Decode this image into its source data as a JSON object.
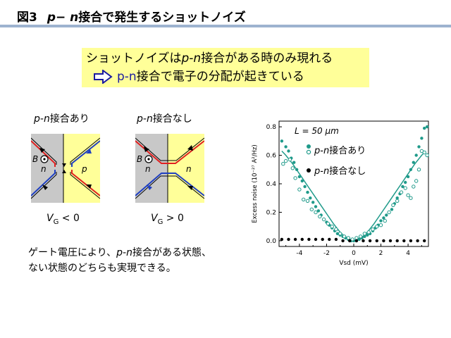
{
  "title": {
    "fig": "図3",
    "pn": "p− n",
    "rest": "接合で発生するショットノイズ"
  },
  "callout": {
    "line1_a": "ショットノイズは",
    "line1_pn": "p-n",
    "line1_b": "接合がある時のみ現れる",
    "line2_pn": "p-n",
    "line2_b": "接合で電子の分配が起きている"
  },
  "diagrams": {
    "left": {
      "label_pn": "p-n",
      "label_rest": "接合あり",
      "B": "B",
      "n": "n",
      "p": "p",
      "vg_sym": "V",
      "vg_sub": "G",
      "vg_cond": " < 0"
    },
    "right": {
      "label_pn": "p-n",
      "label_rest": "接合なし",
      "B": "B",
      "n1": "n",
      "n2": "n",
      "vg_sym": "V",
      "vg_sub": "G",
      "vg_cond": " > 0"
    }
  },
  "description": {
    "a": "ゲート電圧により、",
    "pn": "p-n",
    "b": "接合がある状態、",
    "line2": "ない状態のどちらも実現できる。"
  },
  "colors": {
    "teal": "#1f9a8a",
    "yellow": "#ffff99",
    "rule": "#9db3cf",
    "red": "#e02020",
    "blue": "#2040c0"
  },
  "chart_data": {
    "type": "scatter",
    "annotation": "L = 50 μm",
    "ylabel": "Excess noise (10⁻²⁷ A²/Hz)",
    "xlabel": "Vsd (mV)",
    "xlim": [
      -5.5,
      5.5
    ],
    "ylim": [
      -0.04,
      0.84
    ],
    "xticks": [
      "-4",
      "-2",
      "0",
      "2",
      "4"
    ],
    "yticks": [
      "0.0",
      "0.2",
      "0.4",
      "0.6",
      "0.8"
    ],
    "legend": {
      "series1_pn": "p-n",
      "series1_rest": "接合あり",
      "series2_pn": "p-n",
      "series2_rest": "接合なし"
    },
    "series": [
      {
        "name": "p-n接合あり (filled)",
        "marker": "filled",
        "color": "#1f9a8a",
        "points": [
          [
            -5.3,
            0.7
          ],
          [
            -5.0,
            0.66
          ],
          [
            -4.8,
            0.63
          ],
          [
            -4.6,
            0.58
          ],
          [
            -4.4,
            0.55
          ],
          [
            -4.2,
            0.5
          ],
          [
            -4.0,
            0.45
          ],
          [
            -3.8,
            0.42
          ],
          [
            -3.6,
            0.38
          ],
          [
            -3.4,
            0.34
          ],
          [
            -3.2,
            0.3
          ],
          [
            -3.0,
            0.27
          ],
          [
            -2.8,
            0.24
          ],
          [
            -2.6,
            0.21
          ],
          [
            -2.4,
            0.18
          ],
          [
            -2.2,
            0.15
          ],
          [
            -2.0,
            0.13
          ],
          [
            -1.8,
            0.11
          ],
          [
            -1.6,
            0.09
          ],
          [
            -1.4,
            0.07
          ],
          [
            -1.2,
            0.05
          ],
          [
            -1.0,
            0.04
          ],
          [
            -0.8,
            0.03
          ],
          [
            -0.6,
            0.02
          ],
          [
            -0.4,
            0.01
          ],
          [
            -0.2,
            0.0
          ],
          [
            0.0,
            0.0
          ],
          [
            0.2,
            0.0
          ],
          [
            0.4,
            0.01
          ],
          [
            0.6,
            0.02
          ],
          [
            0.8,
            0.03
          ],
          [
            1.0,
            0.04
          ],
          [
            1.2,
            0.05
          ],
          [
            1.4,
            0.07
          ],
          [
            1.6,
            0.09
          ],
          [
            1.8,
            0.11
          ],
          [
            2.0,
            0.14
          ],
          [
            2.2,
            0.16
          ],
          [
            2.4,
            0.18
          ],
          [
            2.6,
            0.2
          ],
          [
            2.8,
            0.22
          ],
          [
            3.0,
            0.26
          ],
          [
            3.2,
            0.3
          ],
          [
            3.4,
            0.33
          ],
          [
            3.6,
            0.38
          ],
          [
            3.8,
            0.41
          ],
          [
            4.0,
            0.45
          ],
          [
            4.2,
            0.5
          ],
          [
            4.4,
            0.55
          ],
          [
            4.6,
            0.6
          ],
          [
            4.8,
            0.66
          ],
          [
            5.0,
            0.72
          ],
          [
            5.2,
            0.79
          ],
          [
            5.4,
            0.8
          ]
        ]
      },
      {
        "name": "p-n接合あり (open)",
        "marker": "open",
        "color": "#1f9a8a",
        "points": [
          [
            -5.2,
            0.54
          ],
          [
            -5.0,
            0.56
          ],
          [
            -4.7,
            0.57
          ],
          [
            -4.5,
            0.51
          ],
          [
            -4.3,
            0.44
          ],
          [
            -4.0,
            0.36
          ],
          [
            -3.7,
            0.29
          ],
          [
            -3.4,
            0.28
          ],
          [
            -3.1,
            0.22
          ],
          [
            -2.8,
            0.2
          ],
          [
            -2.5,
            0.17
          ],
          [
            -2.2,
            0.15
          ],
          [
            -1.9,
            0.12
          ],
          [
            -1.6,
            0.1
          ],
          [
            -1.3,
            0.08
          ],
          [
            -1.0,
            0.05
          ],
          [
            -0.7,
            0.03
          ],
          [
            -0.4,
            0.02
          ],
          [
            -0.1,
            0.01
          ],
          [
            0.2,
            0.02
          ],
          [
            0.5,
            0.03
          ],
          [
            0.8,
            0.05
          ],
          [
            1.1,
            0.06
          ],
          [
            1.4,
            0.08
          ],
          [
            1.7,
            0.1
          ],
          [
            2.0,
            0.11
          ],
          [
            2.3,
            0.14
          ],
          [
            2.6,
            0.2
          ],
          [
            2.9,
            0.25
          ],
          [
            3.2,
            0.28
          ],
          [
            3.5,
            0.34
          ],
          [
            3.8,
            0.37
          ],
          [
            4.0,
            0.32
          ],
          [
            4.2,
            0.3
          ],
          [
            4.4,
            0.38
          ],
          [
            4.6,
            0.42
          ],
          [
            4.8,
            0.5
          ],
          [
            5.0,
            0.63
          ],
          [
            5.2,
            0.62
          ],
          [
            5.4,
            0.6
          ]
        ]
      },
      {
        "name": "p-n接合なし",
        "marker": "filled",
        "color": "#000000",
        "points": [
          [
            -5.3,
            0.01
          ],
          [
            -4.8,
            0.01
          ],
          [
            -4.3,
            0.01
          ],
          [
            -3.8,
            0.01
          ],
          [
            -3.3,
            0.01
          ],
          [
            -2.8,
            0.01
          ],
          [
            -2.3,
            0.01
          ],
          [
            -1.8,
            0.01
          ],
          [
            -1.3,
            0.01
          ],
          [
            -0.8,
            0.0
          ],
          [
            -0.3,
            0.0
          ],
          [
            0.2,
            0.0
          ],
          [
            0.7,
            0.0
          ],
          [
            1.2,
            0.0
          ],
          [
            1.7,
            0.0
          ],
          [
            2.2,
            0.0
          ],
          [
            2.7,
            0.0
          ],
          [
            3.2,
            0.0
          ],
          [
            3.7,
            0.0
          ],
          [
            4.2,
            0.0
          ],
          [
            4.7,
            0.0
          ],
          [
            5.2,
            0.0
          ]
        ]
      }
    ],
    "fit_curve": {
      "type": "theory",
      "x": [
        -5.3,
        -5.0,
        -4.5,
        -4.0,
        -3.5,
        -3.0,
        -2.5,
        -2.0,
        -1.5,
        -1.0,
        -0.5,
        0.0,
        0.5,
        1.0,
        1.5,
        2.0,
        2.5,
        3.0,
        3.5,
        4.0,
        4.5,
        5.0,
        5.3
      ],
      "y": [
        0.63,
        0.6,
        0.54,
        0.47,
        0.4,
        0.33,
        0.26,
        0.19,
        0.12,
        0.06,
        0.015,
        0.0,
        0.015,
        0.06,
        0.12,
        0.19,
        0.26,
        0.33,
        0.4,
        0.47,
        0.54,
        0.6,
        0.63
      ]
    }
  }
}
